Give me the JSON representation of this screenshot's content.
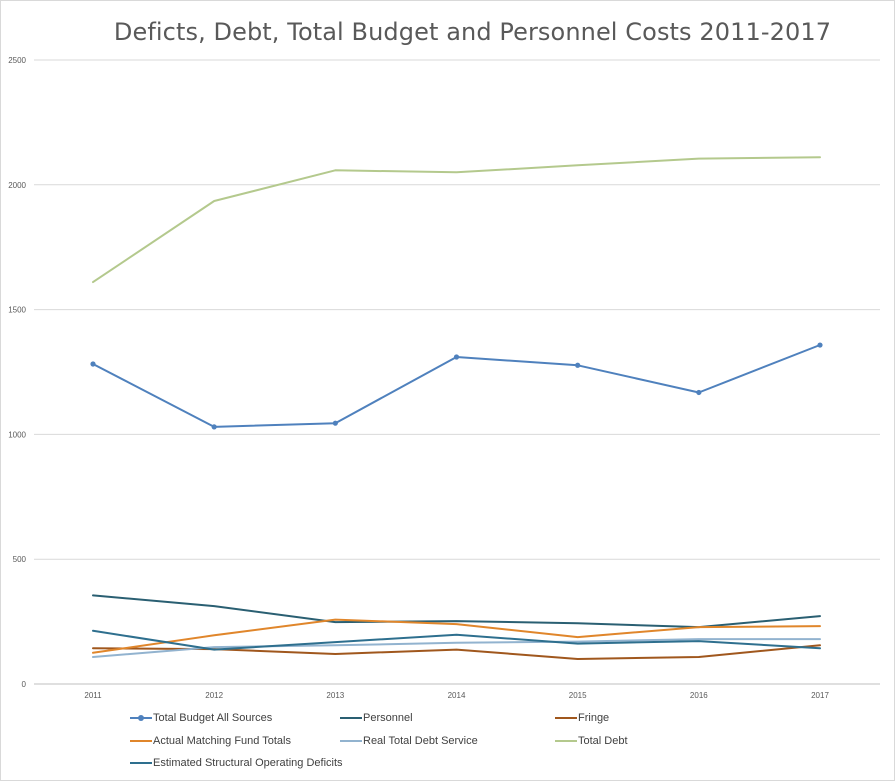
{
  "chart_data": {
    "type": "line",
    "title": "Deficts, Debt, Total Budget and Personnel Costs 2011-2017",
    "xlabel": "",
    "ylabel": "",
    "categories": [
      "2011",
      "2012",
      "2013",
      "2014",
      "2015",
      "2016",
      "2017"
    ],
    "ylim": [
      0,
      2500
    ],
    "yticks": [
      "0",
      "500",
      "1000",
      "1500",
      "2000",
      "2500"
    ],
    "grid": true,
    "legend_position": "bottom",
    "series": [
      {
        "name": "Total Budget All Sources",
        "color": "#4f81bd",
        "markers": true,
        "values": [
          1282,
          1030,
          1045,
          1310,
          1277,
          1168,
          1358
        ]
      },
      {
        "name": "Personnel",
        "color": "#2a5f72",
        "markers": false,
        "values": [
          355,
          312,
          248,
          252,
          243,
          228,
          272
        ]
      },
      {
        "name": "Fringe",
        "color": "#a0571d",
        "markers": false,
        "values": [
          143,
          140,
          120,
          138,
          100,
          108,
          155
        ]
      },
      {
        "name": "Actual Matching Fund Totals",
        "color": "#e0862b",
        "markers": false,
        "values": [
          125,
          195,
          258,
          240,
          188,
          228,
          232
        ]
      },
      {
        "name": "Real Total Debt Service",
        "color": "#92b3cf",
        "markers": false,
        "values": [
          108,
          148,
          155,
          165,
          170,
          180,
          180
        ]
      },
      {
        "name": "Total Debt",
        "color": "#b4c98d",
        "markers": false,
        "values": [
          1610,
          1935,
          2058,
          2050,
          2078,
          2105,
          2110
        ]
      },
      {
        "name": "Estimated Structural Operating Deficits",
        "color": "#2e6f8e",
        "markers": false,
        "values": [
          213,
          138,
          168,
          197,
          162,
          172,
          143
        ]
      }
    ]
  }
}
